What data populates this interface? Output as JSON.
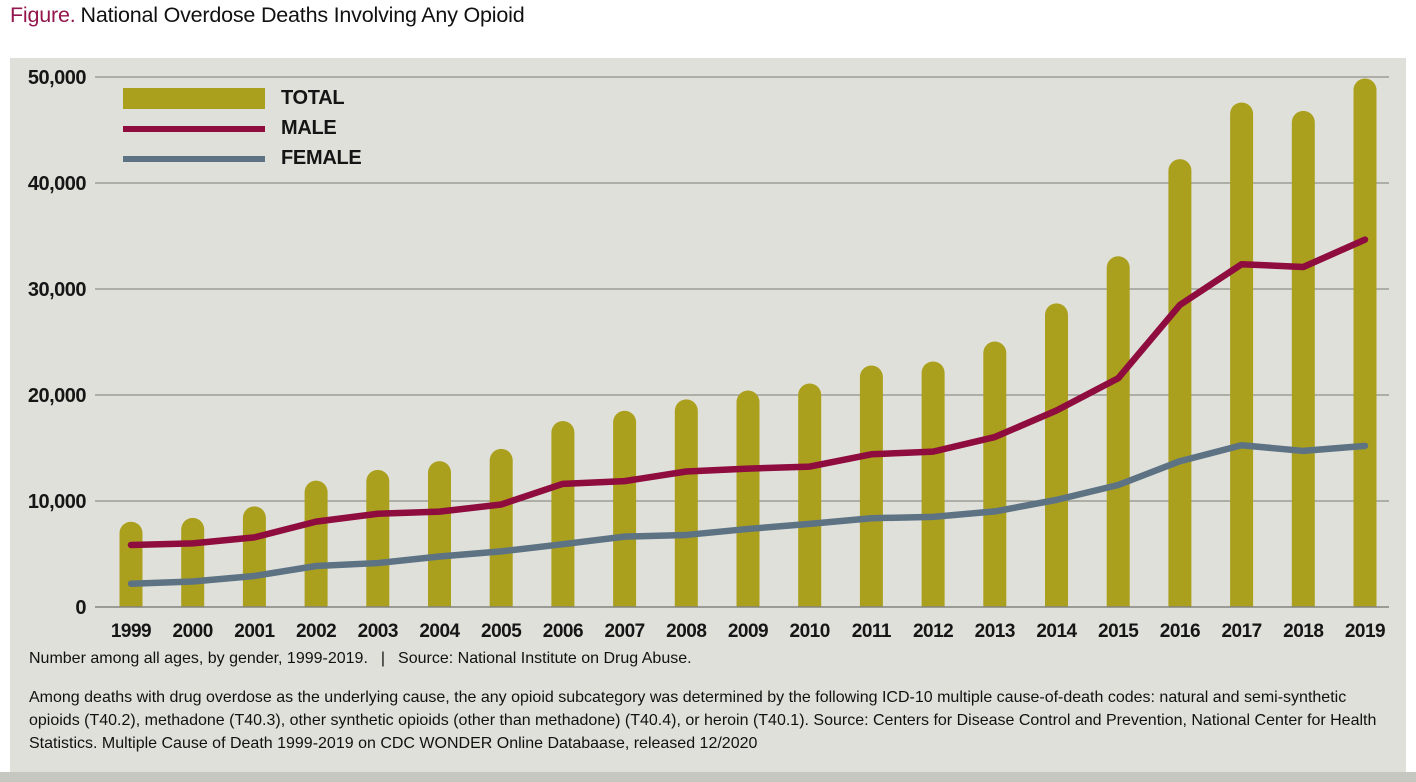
{
  "title": {
    "prefix": "Figure.",
    "text": "National Overdose Deaths Involving Any Opioid"
  },
  "footnote": {
    "note": "Number among all ages, by gender, 1999-2019.",
    "separator": "|",
    "source": "Source: National Institute on Drug Abuse.",
    "methodology": "Among deaths with drug overdose as the underlying cause, the any opioid subcategory was determined by the following ICD-10 multiple cause-of-death codes: natural and semi-synthetic opioids (T40.2), methadone (T40.3), other synthetic opioids (other than methadone) (T40.4), or heroin (T40.1). Source: Centers for Disease Control and Prevention, National Center for Health Statistics. Multiple Cause of Death 1999-2019 on CDC WONDER Online Databaase, released 12/2020"
  },
  "colors": {
    "title_accent": "#93174d",
    "panel_bg": "#e0e0da",
    "total_bar": "#aba01d",
    "male_line": "#8e0c3e",
    "female_line": "#5d7383"
  },
  "chart_data": {
    "type": "bar",
    "title": "National Overdose Deaths Involving Any Opioid",
    "xlabel": "",
    "ylabel": "",
    "ylim": [
      0,
      50000
    ],
    "ytick_step": 10000,
    "ytick_labels": [
      "0",
      "10,000",
      "20,000",
      "30,000",
      "40,000",
      "50,000"
    ],
    "grid": "horizontal",
    "legend_position": "top-left",
    "categories": [
      1999,
      2000,
      2001,
      2002,
      2003,
      2004,
      2005,
      2006,
      2007,
      2008,
      2009,
      2010,
      2011,
      2012,
      2013,
      2014,
      2015,
      2016,
      2017,
      2018,
      2019
    ],
    "series": [
      {
        "name": "TOTAL",
        "type": "bar",
        "color": "#aba01d",
        "values": [
          8048,
          8407,
          9496,
          11920,
          12940,
          13756,
          14918,
          17545,
          18516,
          19582,
          20422,
          21089,
          22784,
          23166,
          25052,
          28647,
          33091,
          42249,
          47600,
          46802,
          49860
        ]
      },
      {
        "name": "MALE",
        "type": "line",
        "color": "#8e0c3e",
        "values": [
          5852,
          5999,
          6568,
          8052,
          8795,
          8995,
          9671,
          11619,
          11875,
          12785,
          13058,
          13246,
          14407,
          14660,
          16034,
          18541,
          21580,
          28496,
          32337,
          32078,
          34658
        ]
      },
      {
        "name": "FEMALE",
        "type": "line",
        "color": "#5d7383",
        "values": [
          2196,
          2408,
          2928,
          3868,
          4145,
          4761,
          5247,
          5926,
          6641,
          6797,
          7364,
          7843,
          8377,
          8506,
          9018,
          10106,
          11511,
          13753,
          15263,
          14724,
          15202
        ]
      }
    ]
  }
}
